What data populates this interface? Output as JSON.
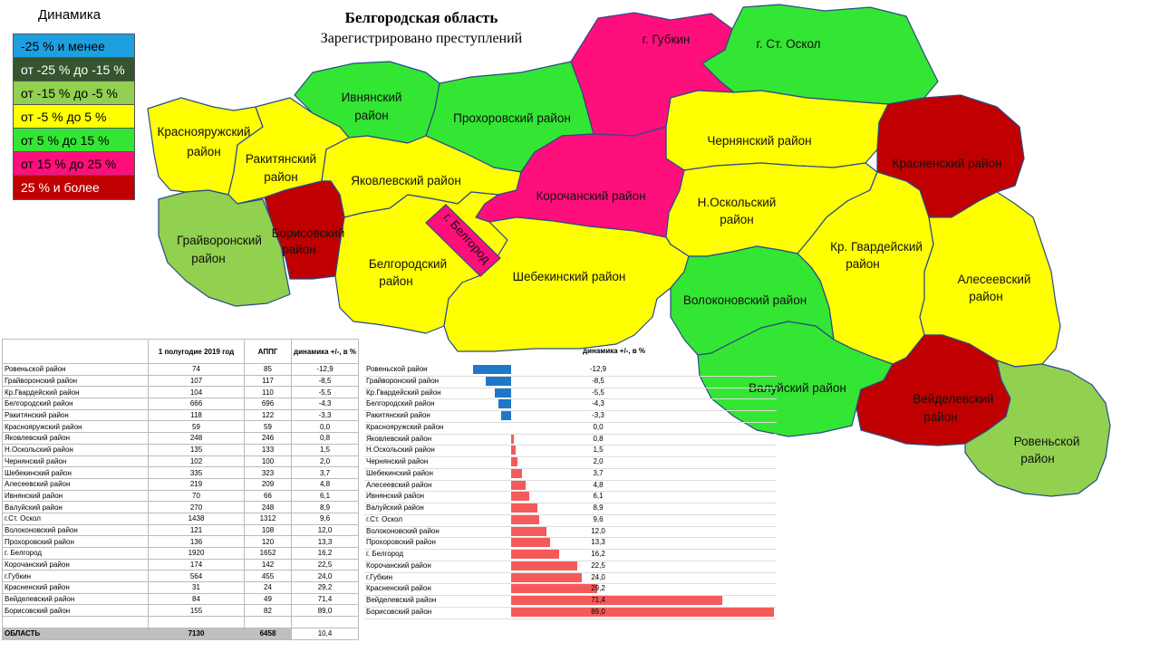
{
  "legend": {
    "title": "Динамика",
    "items": [
      {
        "label": "-25 % и менее",
        "color": "#1e9fe0"
      },
      {
        "label": "от -25 % до -15 %",
        "color": "#36552e"
      },
      {
        "label": "от -15 % до -5 %",
        "color": "#92d050"
      },
      {
        "label": "от -5 % до 5 %",
        "color": "#ffff00"
      },
      {
        "label": "от 5 % до 15 %",
        "color": "#33e633"
      },
      {
        "label": "от 15 % до 25 %",
        "color": "#ff0f7b"
      },
      {
        "label": "25 % и более",
        "color": "#c00000"
      }
    ]
  },
  "map": {
    "title": "Белгородская область",
    "subtitle": "Зарегистрировано преступлений",
    "regions": {
      "krasnoyaruzhsky": {
        "name1": "Краснояружский",
        "name2": "район"
      },
      "rakityansky": {
        "name1": "Ракитянский",
        "name2": "район"
      },
      "ivnyansky": {
        "name1": "Ивнянский",
        "name2": "район"
      },
      "prokhorovsky": {
        "name1": "Прохоровский район",
        "name2": ""
      },
      "gubkin": {
        "name1": "г. Губкин",
        "name2": ""
      },
      "stoskol": {
        "name1": "г. Ст. Оскол",
        "name2": ""
      },
      "chernyansky": {
        "name1": "Чернянский район",
        "name2": ""
      },
      "krasnensky": {
        "name1": "Красненский район",
        "name2": ""
      },
      "yakovlevsky": {
        "name1": "Яковлевский район",
        "name2": ""
      },
      "korochansky": {
        "name1": "Корочанский район",
        "name2": ""
      },
      "noskolsky": {
        "name1": "Н.Оскольский",
        "name2": "район"
      },
      "grayvoronsky": {
        "name1": "Грайворонский",
        "name2": "район"
      },
      "borisovsky": {
        "name1": "Борисовский",
        "name2": "район"
      },
      "belgorod_city": {
        "name1": "г. Белгород",
        "name2": ""
      },
      "belgorodsky": {
        "name1": "Белгородский",
        "name2": "район"
      },
      "shebekinsky": {
        "name1": "Шебекинский район",
        "name2": ""
      },
      "krgvardeysky": {
        "name1": "Кр. Гвардейский",
        "name2": "район"
      },
      "alekseevsky": {
        "name1": "Алесеевский",
        "name2": "район"
      },
      "volokonovsky": {
        "name1": "Волоконовский район",
        "name2": ""
      },
      "valuysky": {
        "name1": "Валуйский район",
        "name2": ""
      },
      "veydelevsky": {
        "name1": "Вейделевский",
        "name2": "район"
      },
      "rovenskoy": {
        "name1": "Ровеньской",
        "name2": "район"
      }
    }
  },
  "table": {
    "headers": [
      "",
      "1 полугодие 2019 год",
      "АППГ",
      "динамика +/-, в %"
    ],
    "rows": [
      [
        "Ровеньской район",
        "74",
        "85",
        "-12,9"
      ],
      [
        "Грайворонский район",
        "107",
        "117",
        "-8,5"
      ],
      [
        "Кр.Гвардейский район",
        "104",
        "110",
        "-5,5"
      ],
      [
        "Белгородский район",
        "666",
        "696",
        "-4,3"
      ],
      [
        "Ракитянский район",
        "118",
        "122",
        "-3,3"
      ],
      [
        "Краснояружский район",
        "59",
        "59",
        "0,0"
      ],
      [
        "Яковлевский район",
        "248",
        "246",
        "0,8"
      ],
      [
        "Н.Оскольский район",
        "135",
        "133",
        "1,5"
      ],
      [
        "Чернянский район",
        "102",
        "100",
        "2,0"
      ],
      [
        "Шебекинский район",
        "335",
        "323",
        "3,7"
      ],
      [
        "Алесеевский район",
        "219",
        "209",
        "4,8"
      ],
      [
        "Ивнянский район",
        "70",
        "66",
        "6,1"
      ],
      [
        "Валуйский район",
        "270",
        "248",
        "8,9"
      ],
      [
        "г.Ст. Оскол",
        "1438",
        "1312",
        "9,6"
      ],
      [
        "Волоконовский район",
        "121",
        "108",
        "12,0"
      ],
      [
        "Прохоровский район",
        "136",
        "120",
        "13,3"
      ],
      [
        "г. Белгород",
        "1920",
        "1652",
        "16,2"
      ],
      [
        "Корочанский район",
        "174",
        "142",
        "22,5"
      ],
      [
        "г.Губкин",
        "564",
        "455",
        "24,0"
      ],
      [
        "Красненский район",
        "31",
        "24",
        "29,2"
      ],
      [
        "Вейделевский район",
        "84",
        "49",
        "71,4"
      ],
      [
        "Борисовский район",
        "155",
        "82",
        "89,0"
      ]
    ],
    "total": [
      "ОБЛАСТЬ",
      "7130",
      "6458",
      "10,4"
    ]
  },
  "chart_data": {
    "type": "bar",
    "title": "динамика +/-, в %",
    "categories": [
      "Ровеньской район",
      "Грайворонский район",
      "Кр.Гвардейский район",
      "Белгородский район",
      "Ракитянский район",
      "Краснояружский район",
      "Яковлевский район",
      "Н.Оскольский район",
      "Чернянский район",
      "Шебекинский район",
      "Алесеевский район",
      "Ивнянский район",
      "Валуйский район",
      "г.Ст. Оскол",
      "Волоконовский район",
      "Прохоровский район",
      "г. Белгород",
      "Корочанский район",
      "г.Губкин",
      "Красненский район",
      "Вейделевский район",
      "Борисовский район"
    ],
    "values": [
      -12.9,
      -8.5,
      -5.5,
      -4.3,
      -3.3,
      0.0,
      0.8,
      1.5,
      2.0,
      3.7,
      4.8,
      6.1,
      8.9,
      9.6,
      12.0,
      13.3,
      16.2,
      22.5,
      24.0,
      29.2,
      71.4,
      89.0
    ],
    "value_labels": [
      "-12,9",
      "-8,5",
      "-5,5",
      "-4,3",
      "-3,3",
      "0,0",
      "0,8",
      "1,5",
      "2,0",
      "3,7",
      "4,8",
      "6,1",
      "8,9",
      "9,6",
      "12,0",
      "13,3",
      "16,2",
      "22,5",
      "24,0",
      "29,2",
      "71,4",
      "89,0"
    ],
    "negative_color": "#1f77c8",
    "positive_color": "#f55a5a"
  }
}
